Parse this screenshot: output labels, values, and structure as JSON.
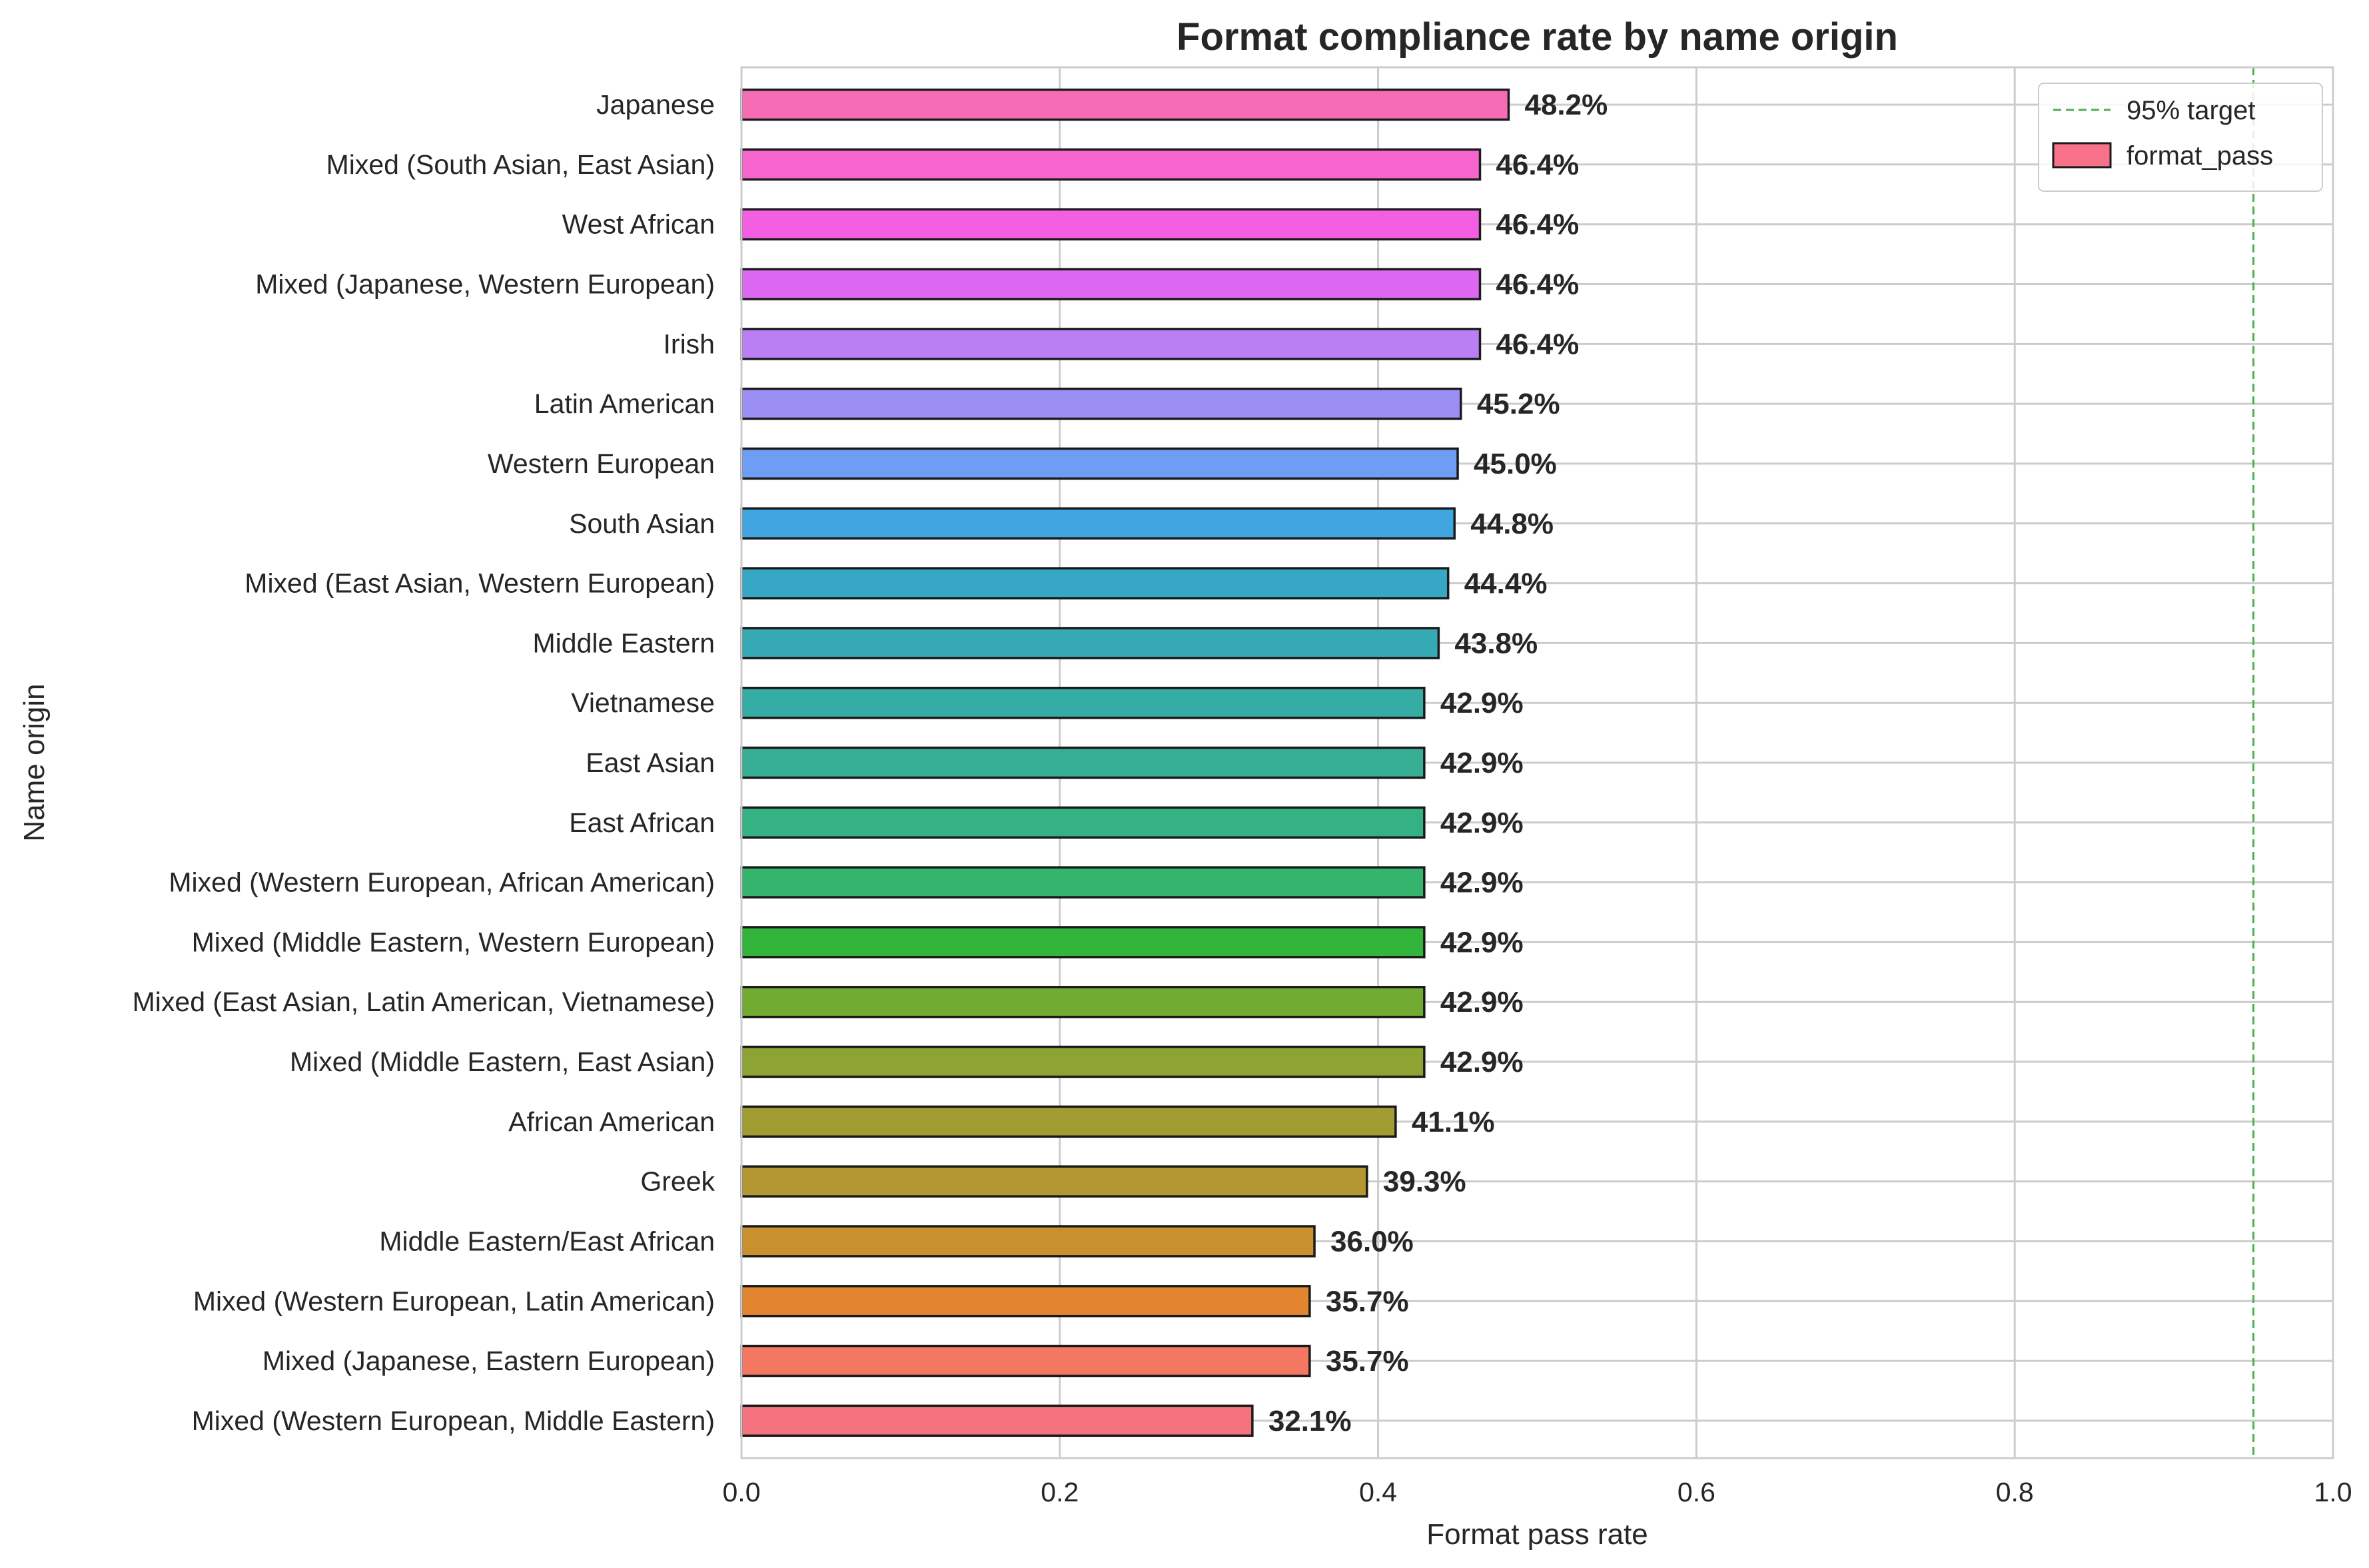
{
  "chart_data": {
    "type": "bar",
    "orientation": "horizontal",
    "title": "Format compliance rate by name origin",
    "xlabel": "Format pass rate",
    "ylabel": "Name origin",
    "xlim": [
      0.0,
      1.0
    ],
    "xticks": [
      "0.0",
      "0.2",
      "0.4",
      "0.6",
      "0.8",
      "1.0"
    ],
    "grid": true,
    "legend_position": "top-right",
    "reference_line": {
      "label": "95% target",
      "value": 0.95,
      "color": "#4caf50"
    },
    "series": [
      {
        "name": "format_pass",
        "legend_color": "#f77189",
        "categories": [
          "Japanese",
          "Mixed (South Asian, East Asian)",
          "West African",
          "Mixed (Japanese, Western European)",
          "Irish",
          "Latin American",
          "Western European",
          "South Asian",
          "Mixed (East Asian, Western European)",
          "Middle Eastern",
          "Vietnamese",
          "East Asian",
          "East African",
          "Mixed (Western European, African American)",
          "Mixed (Middle Eastern, Western European)",
          "Mixed (East Asian, Latin American, Vietnamese)",
          "Mixed (Middle Eastern, East Asian)",
          "African American",
          "Greek",
          "Middle Eastern/East African",
          "Mixed (Western European, Latin American)",
          "Mixed (Japanese, Eastern European)",
          "Mixed (Western European, Middle Eastern)"
        ],
        "values": [
          0.482,
          0.464,
          0.464,
          0.464,
          0.464,
          0.452,
          0.45,
          0.448,
          0.444,
          0.438,
          0.429,
          0.429,
          0.429,
          0.429,
          0.429,
          0.429,
          0.429,
          0.411,
          0.393,
          0.36,
          0.357,
          0.357,
          0.321
        ],
        "value_labels": [
          "48.2%",
          "46.4%",
          "46.4%",
          "46.4%",
          "46.4%",
          "45.2%",
          "45.0%",
          "44.8%",
          "44.4%",
          "43.8%",
          "42.9%",
          "42.9%",
          "42.9%",
          "42.9%",
          "42.9%",
          "42.9%",
          "42.9%",
          "41.1%",
          "39.3%",
          "36.0%",
          "35.7%",
          "35.7%",
          "32.1%"
        ],
        "colors": [
          "#f66db5",
          "#f665cd",
          "#f45ee3",
          "#dc68f2",
          "#bb7ff4",
          "#9b8ff4",
          "#6e9df4",
          "#40a5e0",
          "#36a7c5",
          "#36aab4",
          "#36ada4",
          "#36af95",
          "#35b283",
          "#34b46c",
          "#33b43b",
          "#72ab32",
          "#8ea432",
          "#a29d32",
          "#b39731",
          "#c8912e",
          "#e3842f",
          "#f47761",
          "#f5727f"
        ]
      }
    ]
  }
}
